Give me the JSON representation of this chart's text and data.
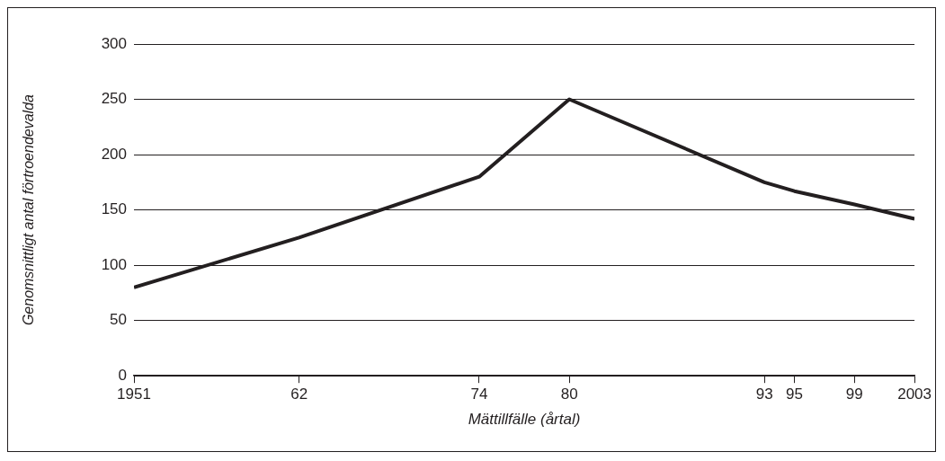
{
  "chart_data": {
    "type": "line",
    "xlabel": "Mättillfälle (årtal)",
    "ylabel": "Genomsnittligt antal förtroendevalda",
    "x": [
      1951,
      1962,
      1974,
      1980,
      1993,
      1995,
      1999,
      2003
    ],
    "series": [
      {
        "color": "#231f20",
        "values": [
          80,
          125,
          180,
          250,
          175,
          167,
          155,
          142
        ]
      }
    ],
    "xlim": [
      1951,
      2003
    ],
    "xticks": [
      1951,
      {
        "value": 1962,
        "label": "62"
      },
      {
        "value": 1974,
        "label": "74"
      },
      {
        "value": 1980,
        "label": "80"
      },
      {
        "value": 1993,
        "label": "93"
      },
      {
        "value": 1995,
        "label": "95"
      },
      {
        "value": 1999,
        "label": "99"
      },
      2003
    ],
    "ylim": [
      0,
      300
    ],
    "yticks": [
      0,
      50,
      100,
      150,
      200,
      250,
      300
    ],
    "grid": "y",
    "legend": false,
    "marker": "none",
    "line_style": "solid"
  }
}
